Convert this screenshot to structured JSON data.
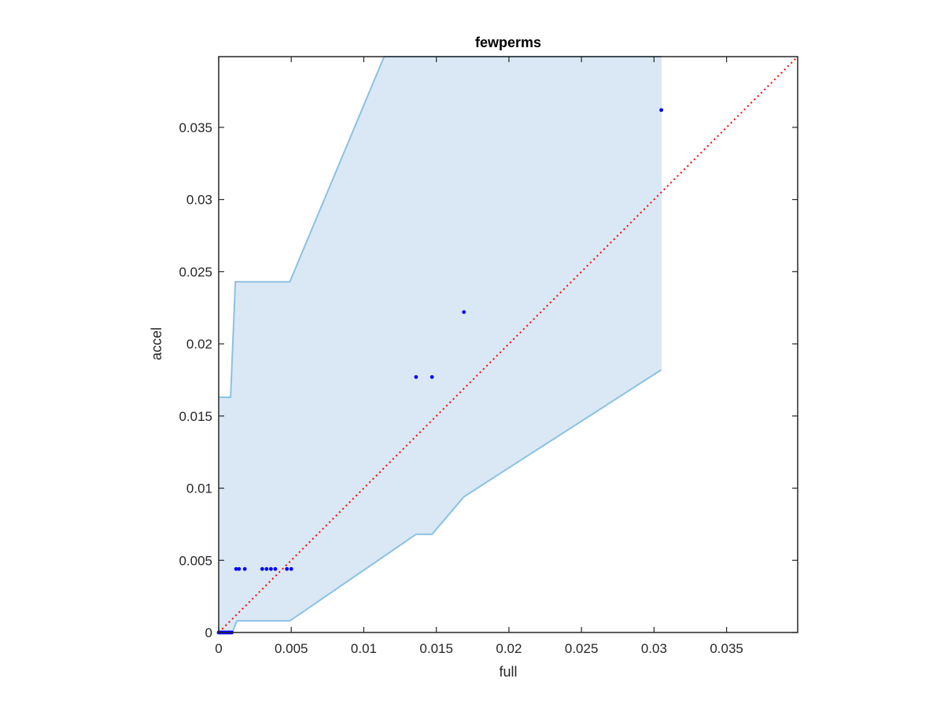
{
  "chart_data": {
    "type": "scatter",
    "title": "fewperms",
    "xlabel": "full",
    "ylabel": "accel",
    "xlim": [
      0,
      0.0399
    ],
    "ylim": [
      0,
      0.0399
    ],
    "xticks": [
      "0",
      "0.005",
      "0.01",
      "0.015",
      "0.02",
      "0.025",
      "0.03",
      "0.035"
    ],
    "yticks": [
      "0",
      "0.005",
      "0.01",
      "0.015",
      "0.02",
      "0.025",
      "0.03",
      "0.035"
    ],
    "grid": false,
    "legend": "none",
    "colors": {
      "points": "#0000ff",
      "band_fill": "#d9e8f4",
      "band_edge": "#8cc1e3",
      "reference_line": "#ff0000"
    },
    "reference_line": {
      "style": "dotted",
      "from": [
        0,
        0
      ],
      "to": [
        0.0399,
        0.0399
      ]
    },
    "band": {
      "upper": [
        [
          0,
          0.0163
        ],
        [
          0.00082,
          0.0163
        ],
        [
          0.00115,
          0.0243
        ],
        [
          0.0049,
          0.0243
        ],
        [
          0.0114,
          0.0399
        ],
        [
          0.0305,
          0.0399
        ]
      ],
      "lower": [
        [
          0,
          0
        ],
        [
          0.00095,
          0
        ],
        [
          0.00125,
          0.0008
        ],
        [
          0.0049,
          0.0008
        ],
        [
          0.0136,
          0.0068
        ],
        [
          0.0147,
          0.0068
        ],
        [
          0.0169,
          0.0094
        ],
        [
          0.0305,
          0.0182
        ]
      ]
    },
    "points": [
      {
        "x": 0.0,
        "y": 0.0
      },
      {
        "x": 0.0001,
        "y": 0.0
      },
      {
        "x": 0.0002,
        "y": 0.0
      },
      {
        "x": 0.0003,
        "y": 0.0
      },
      {
        "x": 0.0004,
        "y": 0.0
      },
      {
        "x": 0.0005,
        "y": 0.0
      },
      {
        "x": 0.0006,
        "y": 0.0
      },
      {
        "x": 0.0007,
        "y": 0.0
      },
      {
        "x": 0.0008,
        "y": 0.0
      },
      {
        "x": 0.0009,
        "y": 0.0
      },
      {
        "x": 0.0012,
        "y": 0.0044
      },
      {
        "x": 0.0014,
        "y": 0.0044
      },
      {
        "x": 0.0018,
        "y": 0.0044
      },
      {
        "x": 0.003,
        "y": 0.0044
      },
      {
        "x": 0.0033,
        "y": 0.0044
      },
      {
        "x": 0.0036,
        "y": 0.0044
      },
      {
        "x": 0.0039,
        "y": 0.0044
      },
      {
        "x": 0.0047,
        "y": 0.0044
      },
      {
        "x": 0.005,
        "y": 0.0044
      },
      {
        "x": 0.0136,
        "y": 0.0177
      },
      {
        "x": 0.0147,
        "y": 0.0177
      },
      {
        "x": 0.0169,
        "y": 0.0222
      },
      {
        "x": 0.0305,
        "y": 0.0362
      }
    ]
  }
}
